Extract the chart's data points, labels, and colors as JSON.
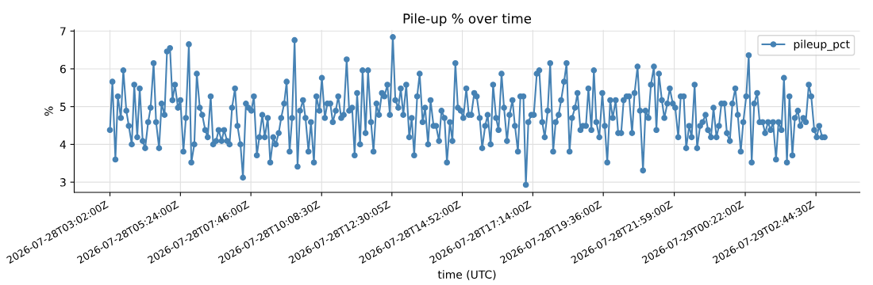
{
  "chart_data": {
    "type": "line",
    "title": "Pile-up % over time",
    "xlabel": "time (UTC)",
    "ylabel": "%",
    "x": [
      "2026-07-28T03:02",
      "2026-07-28T03:07",
      "2026-07-28T03:13",
      "2026-07-28T03:18",
      "2026-07-28T03:24",
      "2026-07-28T03:29",
      "2026-07-28T03:35",
      "2026-07-28T03:40",
      "2026-07-28T03:46",
      "2026-07-28T03:51",
      "2026-07-28T03:57",
      "2026-07-28T04:02",
      "2026-07-28T04:08",
      "2026-07-28T04:13",
      "2026-07-28T04:19",
      "2026-07-28T04:24",
      "2026-07-28T04:30",
      "2026-07-28T04:35",
      "2026-07-28T04:41",
      "2026-07-28T04:46",
      "2026-07-28T04:52",
      "2026-07-28T04:57",
      "2026-07-28T05:03",
      "2026-07-28T05:08",
      "2026-07-28T05:13",
      "2026-07-28T05:19",
      "2026-07-28T05:24",
      "2026-07-28T05:30",
      "2026-07-28T05:35",
      "2026-07-28T05:41",
      "2026-07-28T05:46",
      "2026-07-28T05:52",
      "2026-07-28T05:57",
      "2026-07-28T06:03",
      "2026-07-28T06:08",
      "2026-07-28T06:14",
      "2026-07-28T06:19",
      "2026-07-28T06:25",
      "2026-07-28T06:30",
      "2026-07-28T06:36",
      "2026-07-28T06:41",
      "2026-07-28T06:47",
      "2026-07-28T06:52",
      "2026-07-28T06:58",
      "2026-07-28T07:03",
      "2026-07-28T07:08",
      "2026-07-28T07:14",
      "2026-07-28T07:19",
      "2026-07-28T07:25",
      "2026-07-28T07:30",
      "2026-07-28T07:36",
      "2026-07-28T07:41",
      "2026-07-28T07:47",
      "2026-07-28T07:52",
      "2026-07-28T07:58",
      "2026-07-28T08:03",
      "2026-07-28T08:09",
      "2026-07-28T08:14",
      "2026-07-28T08:20",
      "2026-07-28T08:25",
      "2026-07-28T08:31",
      "2026-07-28T08:36",
      "2026-07-28T08:42",
      "2026-07-28T08:47",
      "2026-07-28T08:53",
      "2026-07-28T08:58",
      "2026-07-28T09:04",
      "2026-07-28T09:09",
      "2026-07-28T09:14",
      "2026-07-28T09:20",
      "2026-07-28T09:25",
      "2026-07-28T09:31",
      "2026-07-28T09:36",
      "2026-07-28T09:42",
      "2026-07-28T09:47",
      "2026-07-28T09:53",
      "2026-07-28T09:58",
      "2026-07-28T10:04",
      "2026-07-28T10:09",
      "2026-07-28T10:15",
      "2026-07-28T10:20",
      "2026-07-28T10:26",
      "2026-07-28T10:31",
      "2026-07-28T10:37",
      "2026-07-28T10:42",
      "2026-07-28T10:48",
      "2026-07-28T10:53",
      "2026-07-28T10:59",
      "2026-07-28T11:04",
      "2026-07-28T11:10",
      "2026-07-28T11:15",
      "2026-07-28T11:20",
      "2026-07-28T11:26",
      "2026-07-28T11:31",
      "2026-07-28T11:37",
      "2026-07-28T11:42",
      "2026-07-28T11:48",
      "2026-07-28T11:53",
      "2026-07-28T11:59",
      "2026-07-28T12:04",
      "2026-07-28T12:10",
      "2026-07-28T12:15",
      "2026-07-28T12:21",
      "2026-07-28T12:26",
      "2026-07-28T12:32",
      "2026-07-28T12:37",
      "2026-07-28T12:43",
      "2026-07-28T12:48",
      "2026-07-28T12:53",
      "2026-07-28T12:59",
      "2026-07-28T13:05",
      "2026-07-28T13:10",
      "2026-07-28T13:15",
      "2026-07-28T13:21",
      "2026-07-28T13:26",
      "2026-07-28T13:32",
      "2026-07-28T13:37",
      "2026-07-28T13:43",
      "2026-07-28T13:48",
      "2026-07-28T13:54",
      "2026-07-28T13:59",
      "2026-07-28T14:05",
      "2026-07-28T14:10",
      "2026-07-28T14:16",
      "2026-07-28T14:21",
      "2026-07-28T14:27",
      "2026-07-28T14:32",
      "2026-07-28T14:38",
      "2026-07-28T14:43",
      "2026-07-28T14:49",
      "2026-07-28T14:54",
      "2026-07-28T15:00",
      "2026-07-28T15:05",
      "2026-07-28T15:10",
      "2026-07-28T15:16",
      "2026-07-28T15:21",
      "2026-07-28T15:27",
      "2026-07-28T15:32",
      "2026-07-28T15:38",
      "2026-07-28T15:43",
      "2026-07-28T15:49",
      "2026-07-28T15:54",
      "2026-07-28T16:00",
      "2026-07-28T16:05",
      "2026-07-28T16:11",
      "2026-07-28T16:16",
      "2026-07-28T16:22",
      "2026-07-28T16:27",
      "2026-07-28T16:33",
      "2026-07-28T16:38",
      "2026-07-28T16:44",
      "2026-07-28T16:49",
      "2026-07-28T16:55",
      "2026-07-28T17:00",
      "2026-07-28T17:05",
      "2026-07-28T17:11",
      "2026-07-28T17:16",
      "2026-07-28T17:22",
      "2026-07-28T17:27",
      "2026-07-28T17:33",
      "2026-07-28T17:38",
      "2026-07-28T17:44",
      "2026-07-28T17:49",
      "2026-07-28T17:55",
      "2026-07-28T18:00",
      "2026-07-28T18:06",
      "2026-07-28T18:11",
      "2026-07-28T18:17",
      "2026-07-28T18:22",
      "2026-07-28T18:28",
      "2026-07-28T18:33",
      "2026-07-28T18:39",
      "2026-07-28T18:44",
      "2026-07-28T18:50",
      "2026-07-28T18:55",
      "2026-07-28T19:01",
      "2026-07-28T19:06",
      "2026-07-28T19:12",
      "2026-07-28T19:17",
      "2026-07-28T19:22",
      "2026-07-28T19:28",
      "2026-07-28T19:34",
      "2026-07-28T19:39",
      "2026-07-28T19:44",
      "2026-07-28T19:50",
      "2026-07-28T19:55",
      "2026-07-28T20:01",
      "2026-07-28T20:06",
      "2026-07-28T20:12",
      "2026-07-28T20:17",
      "2026-07-28T20:23",
      "2026-07-28T20:28",
      "2026-07-28T20:34",
      "2026-07-28T20:39",
      "2026-07-28T20:45",
      "2026-07-28T20:50",
      "2026-07-28T20:56",
      "2026-07-28T21:01",
      "2026-07-28T21:07",
      "2026-07-28T21:12",
      "2026-07-28T21:18",
      "2026-07-28T21:23",
      "2026-07-28T21:28",
      "2026-07-28T21:34",
      "2026-07-28T21:39",
      "2026-07-28T21:45",
      "2026-07-28T21:50",
      "2026-07-28T21:56",
      "2026-07-28T22:01",
      "2026-07-28T22:07",
      "2026-07-28T22:12",
      "2026-07-28T22:18",
      "2026-07-28T22:23",
      "2026-07-28T22:29",
      "2026-07-28T22:34",
      "2026-07-28T22:40",
      "2026-07-28T22:45",
      "2026-07-28T22:51",
      "2026-07-28T22:56",
      "2026-07-28T23:02",
      "2026-07-28T23:07",
      "2026-07-28T23:13",
      "2026-07-28T23:18",
      "2026-07-28T23:24",
      "2026-07-28T23:29",
      "2026-07-28T23:34",
      "2026-07-28T23:40",
      "2026-07-28T23:45",
      "2026-07-28T23:51",
      "2026-07-28T23:56",
      "2026-07-29T00:02",
      "2026-07-29T00:07",
      "2026-07-29T00:13",
      "2026-07-29T00:18",
      "2026-07-29T00:24",
      "2026-07-29T00:29",
      "2026-07-29T00:35",
      "2026-07-29T00:40",
      "2026-07-29T00:46",
      "2026-07-29T00:51",
      "2026-07-29T00:57",
      "2026-07-29T01:02",
      "2026-07-29T01:08",
      "2026-07-29T01:13",
      "2026-07-29T01:18",
      "2026-07-29T01:24",
      "2026-07-29T01:29",
      "2026-07-29T01:35",
      "2026-07-29T01:40",
      "2026-07-29T01:46",
      "2026-07-29T01:51",
      "2026-07-29T01:57",
      "2026-07-29T02:02",
      "2026-07-29T02:08",
      "2026-07-29T02:13",
      "2026-07-29T02:19",
      "2026-07-29T02:24",
      "2026-07-29T02:30",
      "2026-07-29T02:35",
      "2026-07-29T02:41",
      "2026-07-29T02:46",
      "2026-07-29T02:51",
      "2026-07-29T02:57",
      "2026-07-29T03:02"
    ],
    "series": [
      {
        "name": "pileup_pct",
        "color": "#4682b4",
        "values": [
          4.38,
          5.66,
          3.6,
          5.27,
          4.7,
          5.96,
          4.89,
          4.49,
          4.0,
          5.58,
          4.19,
          5.48,
          4.09,
          3.9,
          4.59,
          4.97,
          6.15,
          4.59,
          3.9,
          5.08,
          4.78,
          6.46,
          6.55,
          5.17,
          5.58,
          4.97,
          5.17,
          3.81,
          4.7,
          6.65,
          3.52,
          4.0,
          5.87,
          4.97,
          4.78,
          4.38,
          4.19,
          5.27,
          4.0,
          4.09,
          4.38,
          4.09,
          4.38,
          4.09,
          4.0,
          4.97,
          5.48,
          4.49,
          4.0,
          3.12,
          5.08,
          4.97,
          4.89,
          5.27,
          3.71,
          4.19,
          4.78,
          4.19,
          4.7,
          3.52,
          4.19,
          4.0,
          4.3,
          4.7,
          5.08,
          5.66,
          3.81,
          4.7,
          6.76,
          3.41,
          4.89,
          5.17,
          4.7,
          3.81,
          4.59,
          3.52,
          5.27,
          4.89,
          5.76,
          4.7,
          5.08,
          5.08,
          4.59,
          4.89,
          5.27,
          4.7,
          4.78,
          6.25,
          4.89,
          4.97,
          3.71,
          5.36,
          4.0,
          5.96,
          4.3,
          5.96,
          4.59,
          3.81,
          5.08,
          4.78,
          5.36,
          5.27,
          5.58,
          4.78,
          6.84,
          5.17,
          4.97,
          5.48,
          4.78,
          5.58,
          4.19,
          4.7,
          3.71,
          5.27,
          5.87,
          4.59,
          4.97,
          4.0,
          5.17,
          4.49,
          4.49,
          4.09,
          4.89,
          4.7,
          3.52,
          4.59,
          4.09,
          6.15,
          4.97,
          4.89,
          4.7,
          5.48,
          4.78,
          4.78,
          5.36,
          5.27,
          4.7,
          3.9,
          4.49,
          4.78,
          4.0,
          5.58,
          4.7,
          4.38,
          5.87,
          4.97,
          4.09,
          4.78,
          5.17,
          4.49,
          3.81,
          5.27,
          5.27,
          2.93,
          4.59,
          4.78,
          4.78,
          5.87,
          5.96,
          4.59,
          4.19,
          4.89,
          6.15,
          3.81,
          4.59,
          4.78,
          5.17,
          5.66,
          6.15,
          3.81,
          4.7,
          4.97,
          5.36,
          4.38,
          4.49,
          4.49,
          5.48,
          4.38,
          5.96,
          4.59,
          4.19,
          5.36,
          4.49,
          3.52,
          5.17,
          4.7,
          5.17,
          4.3,
          4.3,
          5.17,
          5.27,
          5.27,
          4.3,
          5.36,
          6.06,
          4.89,
          3.31,
          4.89,
          4.7,
          5.58,
          6.06,
          4.38,
          5.87,
          5.17,
          4.7,
          5.08,
          5.48,
          5.08,
          4.97,
          4.19,
          5.27,
          5.27,
          3.9,
          4.49,
          4.19,
          5.58,
          3.9,
          4.49,
          4.59,
          4.78,
          4.38,
          4.19,
          4.97,
          4.19,
          4.49,
          5.08,
          5.08,
          4.3,
          4.09,
          5.08,
          5.48,
          4.78,
          3.81,
          4.59,
          5.27,
          6.36,
          3.52,
          5.08,
          5.36,
          4.59,
          4.59,
          4.3,
          4.59,
          4.38,
          4.59,
          3.6,
          4.59,
          4.38,
          5.76,
          3.52,
          5.27,
          3.71,
          4.7,
          4.89,
          4.49,
          4.7,
          4.59,
          5.58,
          5.27,
          4.38,
          4.19,
          4.49,
          4.19,
          4.19
        ]
      }
    ],
    "xlim": [
      "2026-07-28T01:50",
      "2026-07-29T04:13"
    ],
    "xticks": [
      {
        "value": "2026-07-28T03:02:00",
        "label": "2026-07-28T03:02:00Z"
      },
      {
        "value": "2026-07-28T05:24:00",
        "label": "2026-07-28T05:24:00Z"
      },
      {
        "value": "2026-07-28T07:46:00",
        "label": "2026-07-28T07:46:00Z"
      },
      {
        "value": "2026-07-28T10:08:30",
        "label": "2026-07-28T10:08:30Z"
      },
      {
        "value": "2026-07-28T12:30:05",
        "label": "2026-07-28T12:30:05Z"
      },
      {
        "value": "2026-07-28T14:52:00",
        "label": "2026-07-28T14:52:00Z"
      },
      {
        "value": "2026-07-28T17:14:00",
        "label": "2026-07-28T17:14:00Z"
      },
      {
        "value": "2026-07-28T19:36:00",
        "label": "2026-07-28T19:36:00Z"
      },
      {
        "value": "2026-07-28T21:59:00",
        "label": "2026-07-28T21:59:00Z"
      },
      {
        "value": "2026-07-29T00:22:00",
        "label": "2026-07-29T00:22:00Z"
      },
      {
        "value": "2026-07-29T02:44:30",
        "label": "2026-07-29T02:44:30Z"
      }
    ],
    "ylim": [
      2.73,
      7.03
    ],
    "yticks": [
      3,
      4,
      5,
      6,
      7
    ],
    "grid": true,
    "legend": "top right",
    "marker": "circle",
    "line_style": "solid"
  }
}
